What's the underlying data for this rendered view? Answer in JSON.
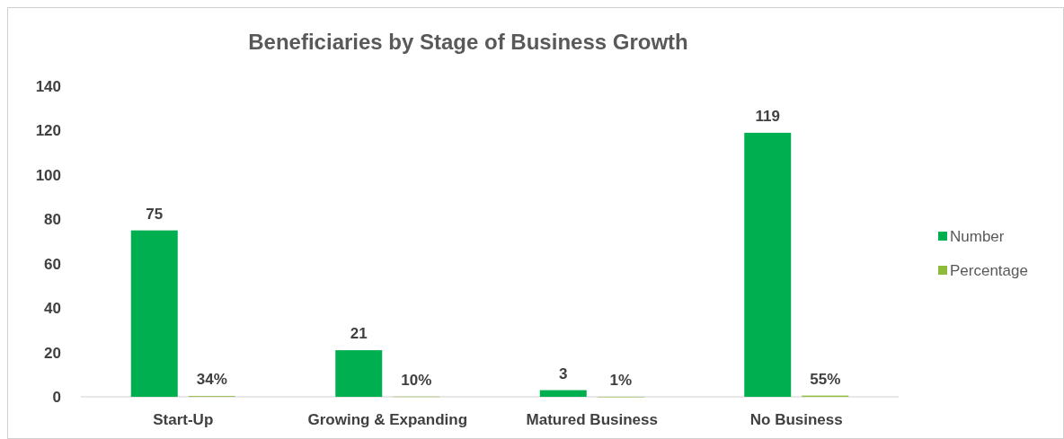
{
  "chart_data": {
    "type": "bar",
    "title": "Beneficiaries by Stage of Business Growth",
    "categories": [
      "Start-Up",
      "Growing & Expanding",
      "Matured Business",
      "No Business"
    ],
    "series": [
      {
        "name": "Number",
        "color": "#00b050",
        "values": [
          75,
          21,
          3,
          119
        ],
        "value_labels": [
          "75",
          "21",
          "3",
          "119"
        ]
      },
      {
        "name": "Percentage",
        "color": "#8dbb3a",
        "values": [
          0.34,
          0.1,
          0.01,
          0.55
        ],
        "value_labels": [
          "34%",
          "10%",
          "1%",
          "55%"
        ]
      }
    ],
    "ylim": [
      0,
      140
    ],
    "yticks": [
      0,
      20,
      40,
      60,
      80,
      100,
      120,
      140
    ],
    "grid": false,
    "legend": "right"
  }
}
